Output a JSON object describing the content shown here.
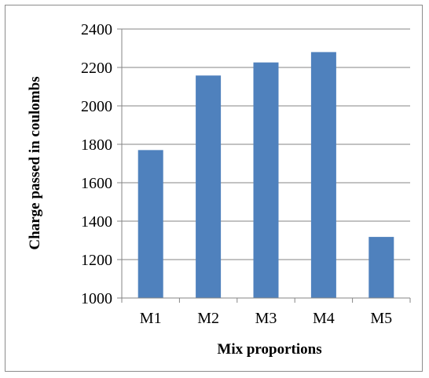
{
  "chart_data": {
    "type": "bar",
    "categories": [
      "M1",
      "M2",
      "M3",
      "M4",
      "M5"
    ],
    "values": [
      1770,
      2158,
      2226,
      2280,
      1318
    ],
    "xlabel": "Mix proportions",
    "ylabel": "Charge passed in coulombs",
    "ylim": [
      1000,
      2400
    ],
    "yticks": [
      1000,
      1200,
      1400,
      1600,
      1800,
      2000,
      2200,
      2400
    ],
    "grid": true,
    "legend": "none",
    "colors": {
      "bar": "#4f81bd",
      "grid": "#868686",
      "axis": "#868686"
    }
  }
}
